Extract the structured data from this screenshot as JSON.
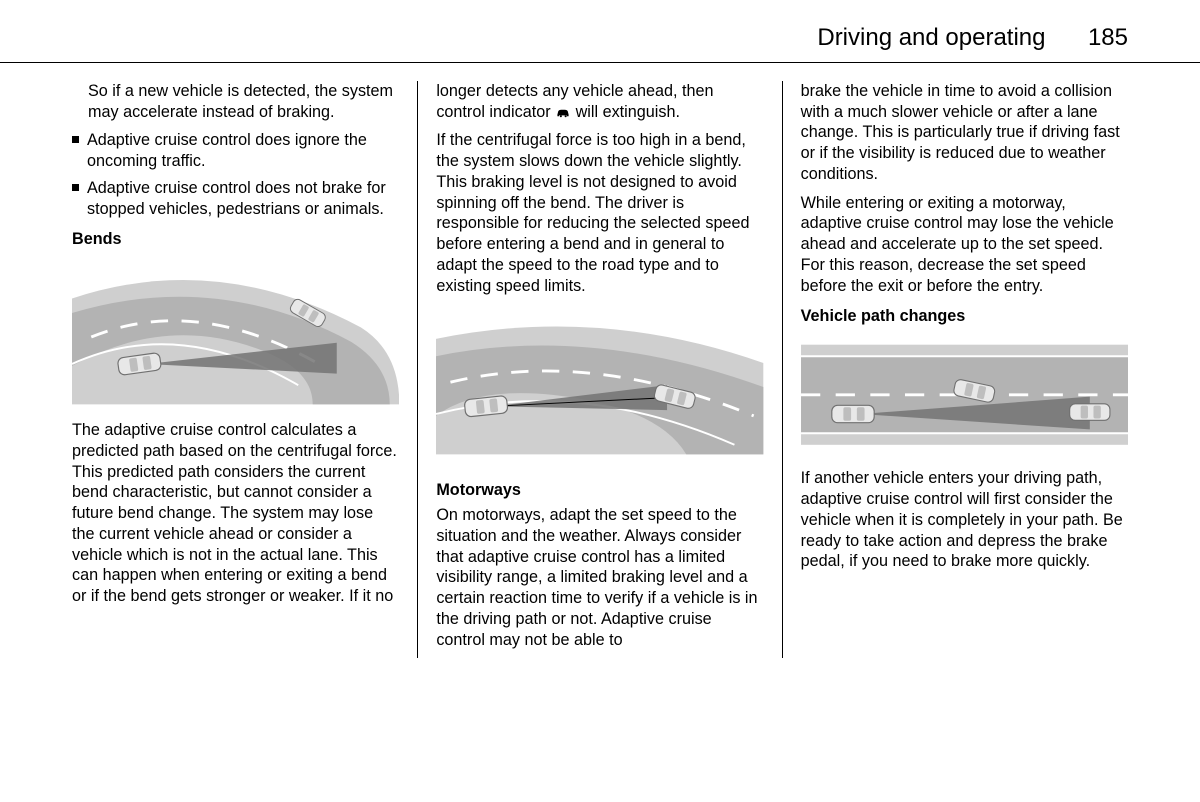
{
  "header": {
    "section_title": "Driving and operating",
    "page_number": "185"
  },
  "col1": {
    "intro_para": "So if a new vehicle is detected, the system may accelerate instead of braking.",
    "bullet1": "Adaptive cruise control does ignore the oncoming traffic.",
    "bullet2": "Adaptive cruise control does not brake for stopped vehicles, pedestrians or animals.",
    "heading_bends": "Bends",
    "bends_para": "The adaptive cruise control calculates a predicted path based on the centrifugal force. This predicted path considers the current bend characteristic, but cannot consider a future bend change. The system may lose the current vehicle ahead or consider a vehicle which is not in the actual lane. This can happen when entering or exiting a bend or if the bend gets stronger or weaker. If it no",
    "illustration1": {
      "type": "infographic",
      "description": "bend-detection-illustration",
      "road_color": "#b3b3b3",
      "shoulder_color": "#cfcfcf",
      "lane_mark_color": "#ffffff",
      "car_body_color": "#e8e8e8",
      "car_outline_color": "#707070",
      "beam_color": "#737373",
      "background_color": "#ffffff",
      "aspect_w": 340,
      "aspect_h": 150
    }
  },
  "col2": {
    "para1_pre": "longer detects any vehicle ahead, then control indicator ",
    "para1_post": " will extinguish.",
    "para2": "If the centrifugal force is too high in a bend, the system slows down the vehicle slightly. This braking level is not designed to avoid spinning off the bend. The driver is responsible for reducing the selected speed before entering a bend and in general to adapt the speed to the road type and to existing speed limits.",
    "heading_motorways": "Motorways",
    "motorways_para": "On motorways, adapt the set speed to the situation and the weather. Always consider that adaptive cruise control has a limited visibility range, a limited braking level and a certain reaction time to verify if a vehicle is in the driving path or not. Adaptive cruise control may not be able to",
    "illustration2": {
      "type": "infographic",
      "description": "bend-two-vehicles-illustration",
      "road_color": "#b3b3b3",
      "shoulder_color": "#cfcfcf",
      "lane_mark_color": "#ffffff",
      "car_body_color": "#e8e8e8",
      "car_outline_color": "#707070",
      "beam_color": "#737373",
      "background_color": "#ffffff",
      "aspect_w": 340,
      "aspect_h": 150
    },
    "car_icon_color": "#000000"
  },
  "col3": {
    "para1": "brake the vehicle in time to avoid a collision with a much slower vehicle or after a lane change. This is particularly true if driving fast or if the visibility is reduced due to weather conditions.",
    "para2": "While entering or exiting a motorway, adaptive cruise control may lose the vehicle ahead and accelerate up to the set speed. For this reason, decrease the set speed before the exit or before the entry.",
    "heading_vpc": "Vehicle path changes",
    "vpc_para": "If another vehicle enters your driving path, adaptive cruise control will first consider the vehicle when it is completely in your path. Be ready to take action and depress the brake pedal, if you need to brake more quickly.",
    "illustration3": {
      "type": "infographic",
      "description": "lane-change-three-vehicles",
      "road_color": "#b3b3b3",
      "shoulder_color": "#cfcfcf",
      "lane_mark_color": "#ffffff",
      "car_body_color": "#e8e8e8",
      "car_outline_color": "#707070",
      "beam_color": "#737373",
      "background_color": "#ffffff",
      "aspect_w": 340,
      "aspect_h": 120
    }
  }
}
